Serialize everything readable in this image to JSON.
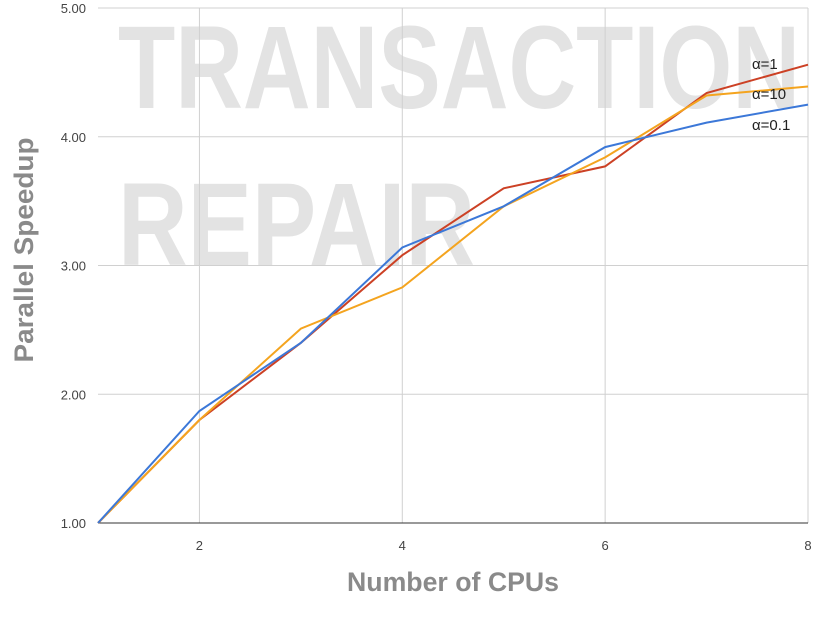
{
  "chart_data": {
    "type": "line",
    "watermark": [
      "TRANSACTION",
      "REPAIR"
    ],
    "xlabel": "Number of CPUs",
    "ylabel": "Parallel Speedup",
    "x": [
      1,
      2,
      3,
      4,
      5,
      6,
      7,
      8
    ],
    "series": [
      {
        "name": "α=1",
        "color": "#cc4125",
        "values": [
          1.0,
          1.8,
          2.4,
          3.08,
          3.6,
          3.77,
          4.34,
          4.56
        ]
      },
      {
        "name": "α=10",
        "color": "#f4a41f",
        "values": [
          1.0,
          1.8,
          2.51,
          2.83,
          3.46,
          3.84,
          4.32,
          4.39
        ]
      },
      {
        "name": "α=0.1",
        "color": "#3c78d8",
        "values": [
          1.0,
          1.87,
          2.4,
          3.14,
          3.46,
          3.92,
          4.11,
          4.25
        ]
      }
    ],
    "xlim": [
      1,
      8
    ],
    "ylim": [
      1,
      5
    ],
    "xticks": [
      2,
      4,
      6,
      8
    ],
    "yticks": [
      {
        "value": 1,
        "label": "1.00"
      },
      {
        "value": 2,
        "label": "2.00"
      },
      {
        "value": 3,
        "label": "3.00"
      },
      {
        "value": 4,
        "label": "4.00"
      },
      {
        "value": 5,
        "label": "5.00"
      }
    ],
    "grid": true
  }
}
